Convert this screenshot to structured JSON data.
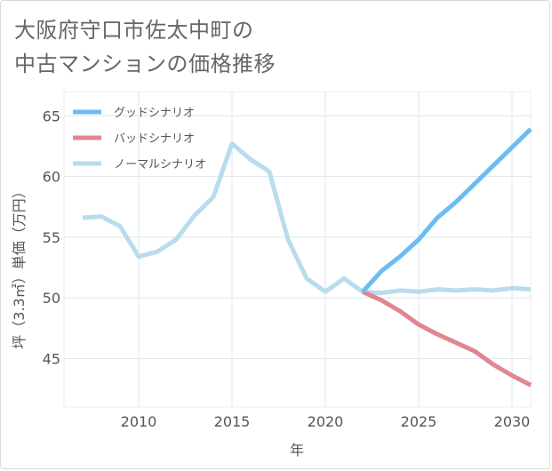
{
  "header": {
    "title_line1": "大阪府守口市佐太中町の",
    "title_line2": "中古マンションの価格推移"
  },
  "chart_data": {
    "type": "line",
    "xlabel": "年",
    "ylabel": "坪（3.3㎡）単価（万円）",
    "xlim": [
      2006,
      2031
    ],
    "ylim": [
      41,
      67
    ],
    "xticks": [
      2010,
      2015,
      2020,
      2025,
      2030
    ],
    "yticks": [
      45,
      50,
      55,
      60,
      65
    ],
    "grid": true,
    "legend_position": "top-left",
    "series": [
      {
        "name": "グッドシナリオ",
        "color": "#6bbdf0",
        "x": [
          2022,
          2023,
          2024,
          2025,
          2026,
          2027,
          2028,
          2029,
          2030,
          2031
        ],
        "y": [
          50.5,
          52.2,
          53.4,
          54.8,
          56.6,
          57.9,
          59.4,
          60.9,
          62.4,
          63.9
        ]
      },
      {
        "name": "バッドシナリオ",
        "color": "#e0868f",
        "x": [
          2022,
          2023,
          2024,
          2025,
          2026,
          2027,
          2028,
          2029,
          2030,
          2031
        ],
        "y": [
          50.5,
          49.8,
          48.9,
          47.8,
          47.0,
          46.3,
          45.6,
          44.5,
          43.6,
          42.8
        ]
      },
      {
        "name": "ノーマルシナリオ",
        "color": "#b8dcec",
        "x": [
          2007,
          2008,
          2009,
          2010,
          2011,
          2012,
          2013,
          2014,
          2015,
          2016,
          2017,
          2018,
          2019,
          2020,
          2021,
          2022,
          2023,
          2024,
          2025,
          2026,
          2027,
          2028,
          2029,
          2030,
          2031
        ],
        "y": [
          56.6,
          56.7,
          55.9,
          53.4,
          53.8,
          54.8,
          56.8,
          58.3,
          62.7,
          61.4,
          60.4,
          54.8,
          51.6,
          50.5,
          51.6,
          50.5,
          50.4,
          50.6,
          50.5,
          50.7,
          50.6,
          50.7,
          50.6,
          50.8,
          50.7
        ]
      }
    ]
  }
}
